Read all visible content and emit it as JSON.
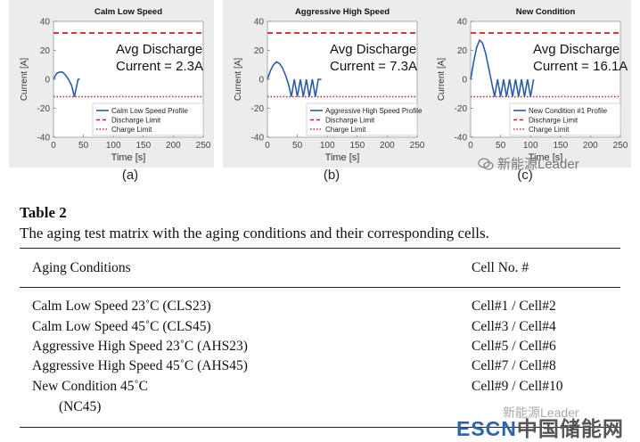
{
  "figure": {
    "charts": [
      {
        "title": "Calm Low Speed",
        "sublabel": "(a)",
        "annotation": [
          "Avg Discharge",
          "Current = 2.3A"
        ],
        "legend": [
          "Calm Low Speed Profile",
          "Discharge Limit",
          "Charge Limit"
        ]
      },
      {
        "title": "Aggressive High Speed",
        "sublabel": "(b)",
        "annotation": [
          "Avg Discharge",
          "Current = 7.3A"
        ],
        "legend": [
          "Aggressive High Speed Profile",
          "Discharge Limit",
          "Charge Limit"
        ]
      },
      {
        "title": "New Condition",
        "sublabel": "(c)",
        "annotation": [
          "Avg Discharge",
          "Current = 16.1A"
        ],
        "legend": [
          "New Condition #1 Profile",
          "Discharge Limit",
          "Charge Limit"
        ]
      }
    ],
    "ylabel": "Current [A]",
    "xlabel": "Time [s]"
  },
  "chart_data": [
    {
      "type": "line",
      "title": "Calm Low Speed",
      "xlabel": "Time [s]",
      "ylabel": "Current [A]",
      "xlim": [
        0,
        250
      ],
      "ylim": [
        -40,
        40
      ],
      "xticks": [
        0,
        50,
        100,
        150,
        200,
        250
      ],
      "yticks": [
        -40,
        -20,
        0,
        20,
        40
      ],
      "series": [
        {
          "name": "Calm Low Speed Profile",
          "x": [
            0,
            5,
            10,
            15,
            20,
            25,
            30,
            35,
            38,
            41,
            44
          ],
          "y": [
            0,
            4,
            5,
            5,
            3,
            0,
            -4,
            -12,
            -6,
            0,
            0
          ]
        },
        {
          "name": "Discharge Limit",
          "x": [
            0,
            250
          ],
          "y": [
            32,
            32
          ]
        },
        {
          "name": "Charge Limit",
          "x": [
            0,
            250
          ],
          "y": [
            -12,
            -12
          ]
        }
      ],
      "legend_position": "bottom-right",
      "grid": false
    },
    {
      "type": "line",
      "title": "Aggressive High Speed",
      "xlabel": "Time [s]",
      "ylabel": "Current [A]",
      "xlim": [
        0,
        250
      ],
      "ylim": [
        -40,
        40
      ],
      "xticks": [
        0,
        50,
        100,
        150,
        200,
        250
      ],
      "yticks": [
        -40,
        -20,
        0,
        20,
        40
      ],
      "series": [
        {
          "name": "Aggressive High Speed Profile",
          "x": [
            0,
            5,
            10,
            15,
            20,
            25,
            30,
            35,
            40,
            45,
            50,
            55,
            60,
            65,
            70,
            75,
            80,
            85,
            90
          ],
          "y": [
            0,
            6,
            10,
            12,
            11,
            8,
            3,
            -3,
            -12,
            0,
            -12,
            0,
            -12,
            0,
            -12,
            0,
            -12,
            0,
            0
          ]
        },
        {
          "name": "Discharge Limit",
          "x": [
            0,
            250
          ],
          "y": [
            32,
            32
          ]
        },
        {
          "name": "Charge Limit",
          "x": [
            0,
            250
          ],
          "y": [
            -12,
            -12
          ]
        }
      ],
      "legend_position": "bottom-right",
      "grid": false
    },
    {
      "type": "line",
      "title": "New Condition",
      "xlabel": "Time [s]",
      "ylabel": "Current [A]",
      "xlim": [
        0,
        250
      ],
      "ylim": [
        -40,
        40
      ],
      "xticks": [
        0,
        50,
        100,
        150,
        200,
        250
      ],
      "yticks": [
        -40,
        -20,
        0,
        20,
        40
      ],
      "series": [
        {
          "name": "New Condition #1 Profile",
          "x": [
            0,
            5,
            10,
            15,
            20,
            25,
            30,
            35,
            40,
            45,
            50,
            55,
            60,
            65,
            70,
            75,
            80,
            85,
            90,
            95,
            100,
            105
          ],
          "y": [
            0,
            12,
            22,
            27,
            25,
            18,
            8,
            -2,
            -12,
            0,
            -12,
            0,
            -12,
            0,
            -12,
            0,
            -12,
            0,
            -12,
            0,
            -12,
            0
          ]
        },
        {
          "name": "Discharge Limit",
          "x": [
            0,
            250
          ],
          "y": [
            32,
            32
          ]
        },
        {
          "name": "Charge Limit",
          "x": [
            0,
            250
          ],
          "y": [
            -12,
            -12
          ]
        }
      ],
      "legend_position": "bottom-right",
      "grid": false
    }
  ],
  "table": {
    "title": "Table 2",
    "caption": "The aging test matrix with the aging conditions and their corresponding cells.",
    "headers": [
      "Aging Conditions",
      "Cell No. #"
    ],
    "rows": [
      [
        "Calm Low Speed 23˚C (CLS23)",
        "Cell#1 / Cell#2"
      ],
      [
        "Calm Low Speed 45˚C (CLS45)",
        "Cell#3 / Cell#4"
      ],
      [
        "Aggressive High Speed 23˚C (AHS23)",
        "Cell#5 / Cell#6"
      ],
      [
        "Aggressive High Speed 45˚C (AHS45)",
        "Cell#7 / Cell#8"
      ],
      [
        "New Condition 45˚C",
        "Cell#9 / Cell#10"
      ]
    ],
    "continuation": "(NC45)"
  },
  "watermarks": {
    "wechat": "新能源Leader",
    "faded": "新能源Leader",
    "escn_latin": "ESCN",
    "escn_cn": "中国储能网"
  },
  "colors": {
    "profile": "#2b5ca8",
    "discharge_limit": "#d21e1e",
    "charge_limit": "#c0282c",
    "chart_bg": "#ececec",
    "escn_blue": "#2f62b0"
  }
}
